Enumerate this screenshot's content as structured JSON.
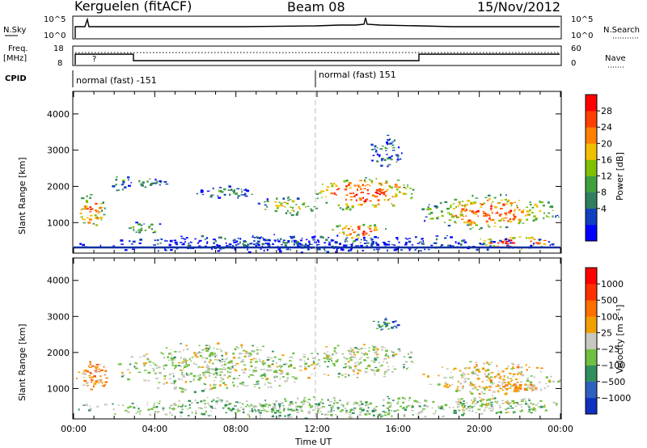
{
  "header": {
    "station": "Kerguelen (fitACF)",
    "beam": "Beam 08",
    "date": "15/Nov/2012"
  },
  "strips": {
    "nsky_label": "N.Sky",
    "nsearch_label": "N.Search",
    "freq_label_1": "Freq.",
    "freq_label_2": "[MHz]",
    "nave_label": "Nave",
    "cpid_label": "CPID",
    "nsky_ticks_left": [
      "10^5",
      "10^0"
    ],
    "nsky_ticks_right": [
      "10^5",
      "10^0"
    ],
    "freq_ticks": [
      "18",
      "8"
    ],
    "nave_ticks": [
      "60",
      "0"
    ],
    "question_mark": "?"
  },
  "cpid": {
    "segments": [
      {
        "label": "normal (fast) -151",
        "start_hour": 0
      },
      {
        "label": "normal (fast) 151",
        "start_hour": 12
      }
    ]
  },
  "chart_data": [
    {
      "type": "heatmap",
      "parameter": "power",
      "ylabel": "Slant Range [km]",
      "xlabel": "",
      "ylim": [
        180,
        4600
      ],
      "xlim_hours": [
        0,
        24
      ],
      "yticks": [
        "4000",
        "3000",
        "2000",
        "1000"
      ],
      "yticks_values": [
        4000,
        3000,
        2000,
        1000
      ],
      "colorbar_label": "Power [dB]",
      "colorbar_ticks": [
        "28",
        "24",
        "20",
        "16",
        "12",
        "8",
        "4"
      ],
      "colorbar_colors": [
        "#0000ff",
        "#1040c0",
        "#2f7f5f",
        "#3fa040",
        "#7fc000",
        "#f0c000",
        "#ff8000",
        "#ff4000",
        "#ff0000"
      ],
      "regions": [
        {
          "t0": 0.0,
          "t1": 1.6,
          "r0": 850,
          "r1": 1850,
          "level": 0.75
        },
        {
          "t0": 1.7,
          "t1": 2.8,
          "r0": 1850,
          "r1": 2400,
          "level": 0.35
        },
        {
          "t0": 2.5,
          "t1": 4.5,
          "r0": 700,
          "r1": 1050,
          "level": 0.5
        },
        {
          "t0": 2.8,
          "t1": 4.6,
          "r0": 1950,
          "r1": 2300,
          "level": 0.3
        },
        {
          "t0": 6.0,
          "t1": 9.0,
          "r0": 1650,
          "r1": 2100,
          "level": 0.3
        },
        {
          "t0": 9.0,
          "t1": 12.0,
          "r0": 1200,
          "r1": 1750,
          "level": 0.6
        },
        {
          "t0": 11.5,
          "t1": 17.0,
          "r0": 1350,
          "r1": 2300,
          "level": 0.9
        },
        {
          "t0": 12.5,
          "t1": 15.5,
          "r0": 500,
          "r1": 1050,
          "level": 0.85
        },
        {
          "t0": 14.5,
          "t1": 16.2,
          "r0": 2500,
          "r1": 3500,
          "level": 0.25
        },
        {
          "t0": 17.0,
          "t1": 24.0,
          "r0": 800,
          "r1": 1800,
          "level": 0.8
        },
        {
          "t0": 19.5,
          "t1": 24.0,
          "r0": 280,
          "r1": 650,
          "level": 0.95
        },
        {
          "t0": 0.0,
          "t1": 24.0,
          "r0": 180,
          "r1": 700,
          "level": 0.15
        }
      ]
    },
    {
      "type": "heatmap",
      "parameter": "velocity",
      "ylabel": "Slant Range [km]",
      "xlabel": "Time UT",
      "ylim": [
        180,
        4600
      ],
      "xlim_hours": [
        0,
        24
      ],
      "xticks": [
        "00:00",
        "04:00",
        "08:00",
        "12:00",
        "16:00",
        "20:00",
        "00:00"
      ],
      "yticks": [
        "4000",
        "3000",
        "2000",
        "1000"
      ],
      "yticks_values": [
        4000,
        3000,
        2000,
        1000
      ],
      "colorbar_label": "Velocity [m s⁻¹]",
      "colorbar_ticks": [
        "1000",
        "500",
        "100",
        "25",
        "−25",
        "−100",
        "−500",
        "−1000"
      ],
      "colorbar_colors": [
        "#1030c0",
        "#2f60c0",
        "#2f8f5f",
        "#6fc040",
        "#c8c8c0",
        "#f0a000",
        "#ff7000",
        "#ff3000",
        "#ff0000"
      ],
      "regions": [
        {
          "t0": 0.0,
          "t1": 1.8,
          "r0": 900,
          "r1": 1800,
          "level": 0.65
        },
        {
          "t0": 2.0,
          "t1": 12.0,
          "r0": 900,
          "r1": 2300,
          "level": 0.45
        },
        {
          "t0": 11.0,
          "t1": 17.0,
          "r0": 1300,
          "r1": 2300,
          "level": 0.45
        },
        {
          "t0": 14.5,
          "t1": 16.0,
          "r0": 2550,
          "r1": 3100,
          "level": 0.25
        },
        {
          "t0": 17.0,
          "t1": 24.0,
          "r0": 800,
          "r1": 1800,
          "level": 0.55
        },
        {
          "t0": 20.5,
          "t1": 23.0,
          "r0": 900,
          "r1": 1200,
          "level": 0.62
        },
        {
          "t0": 18.0,
          "t1": 24.0,
          "r0": 300,
          "r1": 800,
          "level": 0.45
        },
        {
          "t0": 0.0,
          "t1": 24.0,
          "r0": 180,
          "r1": 800,
          "level": 0.4
        }
      ]
    }
  ]
}
